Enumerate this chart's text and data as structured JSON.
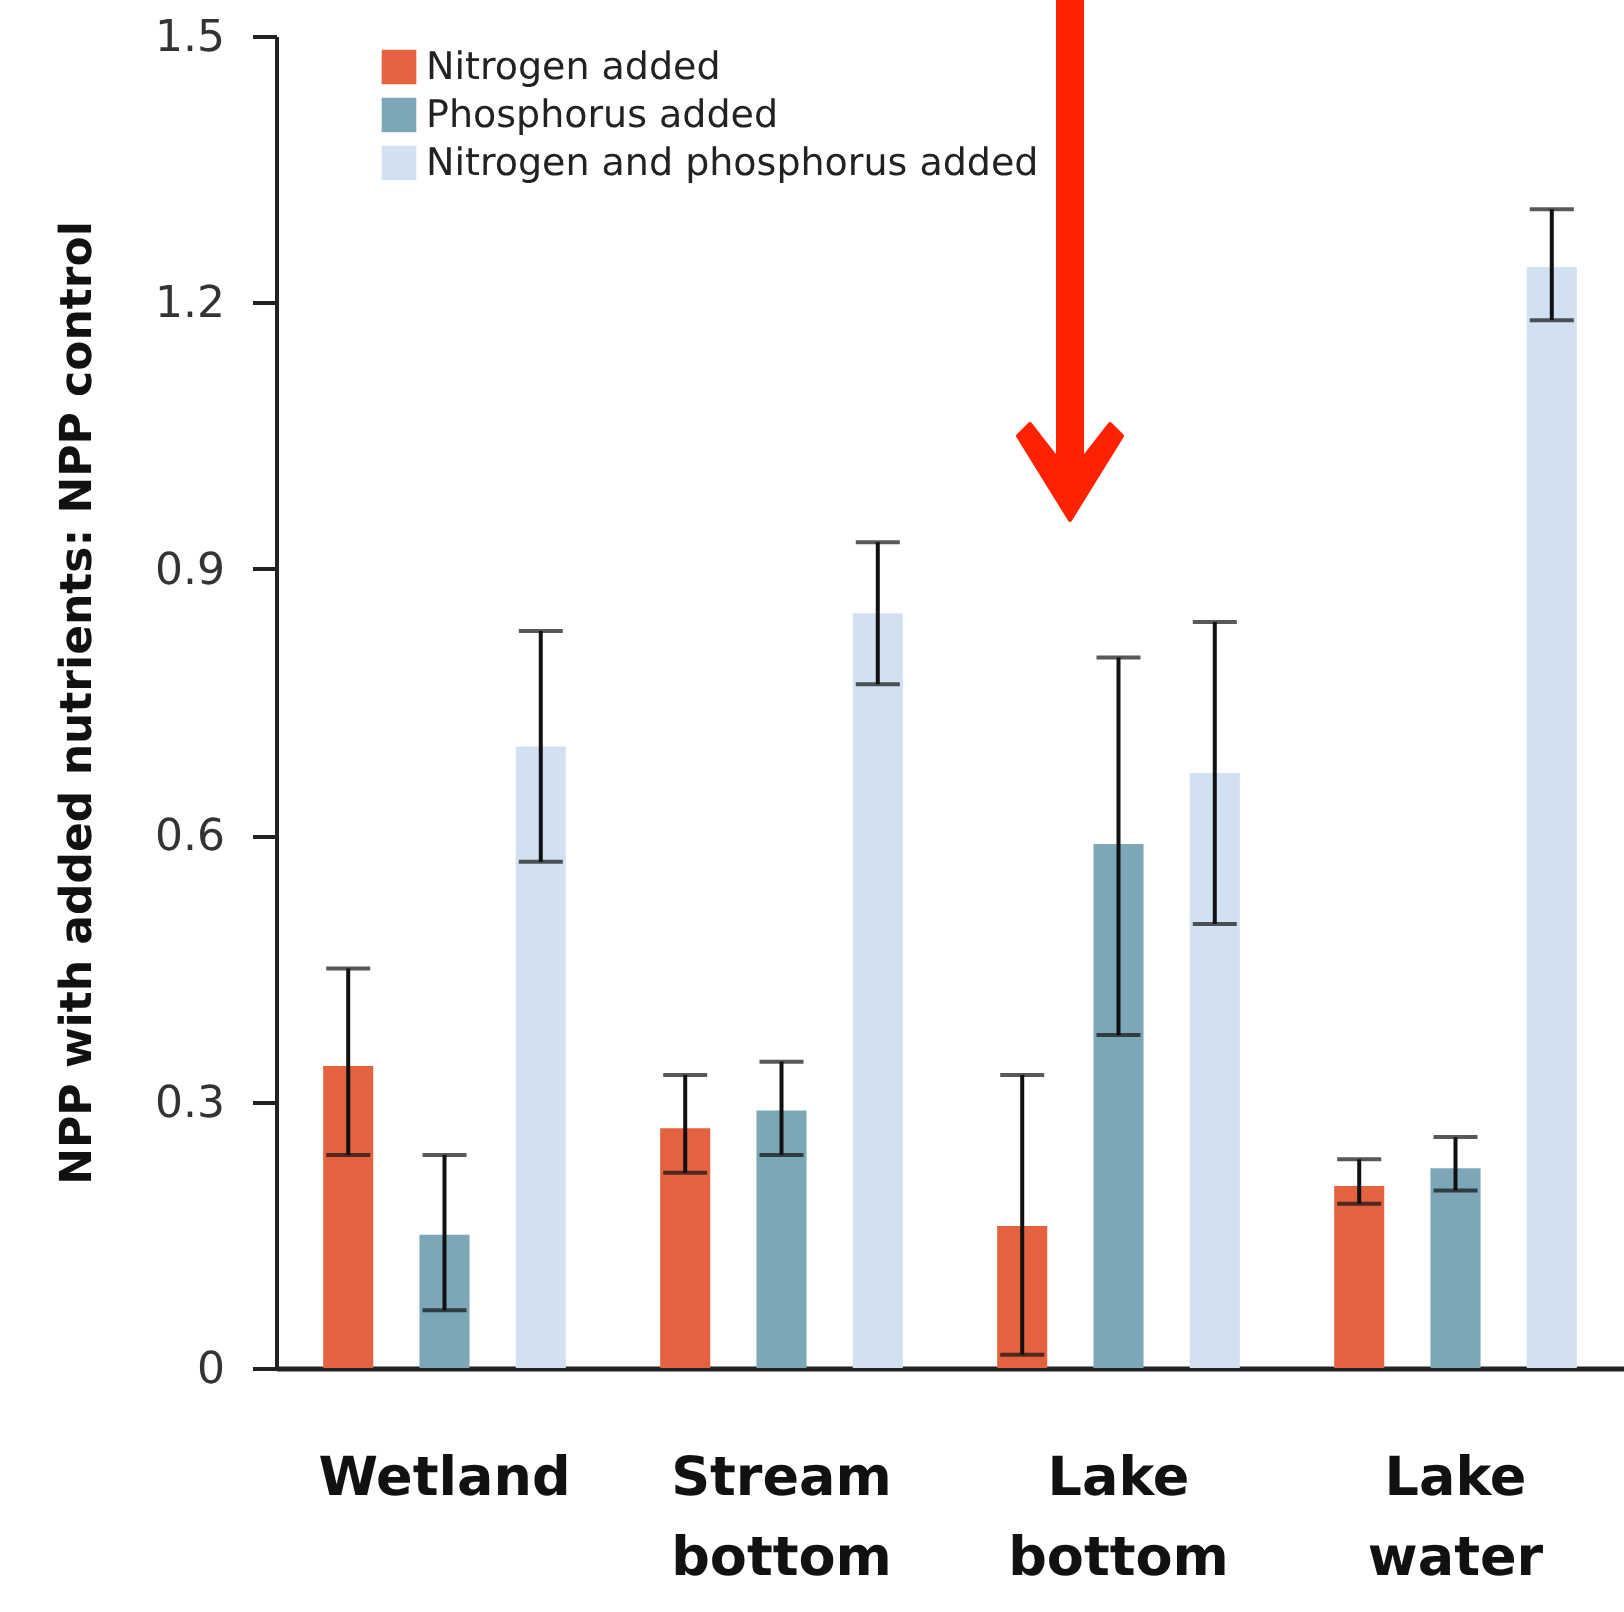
{
  "chart_data": {
    "type": "bar",
    "ylabel": "NPP with added nutrients: NPP control",
    "categories": [
      "Wetland",
      "Stream bottom",
      "Lake bottom",
      "Lake water"
    ],
    "series": [
      {
        "name": "Nitrogen added",
        "color": "#e4623f",
        "values": [
          0.34,
          0.27,
          0.16,
          0.205
        ],
        "errors": [
          [
            0.24,
            0.45
          ],
          [
            0.22,
            0.33
          ],
          [
            0.015,
            0.33
          ],
          [
            0.185,
            0.235
          ]
        ]
      },
      {
        "name": "Phosphorus added",
        "color": "#7ba7b6",
        "values": [
          0.15,
          0.29,
          0.59,
          0.225
        ],
        "errors": [
          [
            0.065,
            0.24
          ],
          [
            0.24,
            0.345
          ],
          [
            0.375,
            0.8
          ],
          [
            0.2,
            0.26
          ]
        ]
      },
      {
        "name": "Nitrogen and phosphorus added",
        "color": "#d1e1f1",
        "values": [
          0.7,
          0.85,
          0.67,
          1.24
        ],
        "errors": [
          [
            0.57,
            0.83
          ],
          [
            0.77,
            0.93
          ],
          [
            0.5,
            0.84
          ],
          [
            1.18,
            1.305
          ]
        ]
      }
    ],
    "ylim": [
      0,
      1.5
    ],
    "yticks": [
      0,
      0.3,
      0.6,
      0.9,
      1.2,
      1.5
    ],
    "grid": false,
    "legend": "top left"
  }
}
